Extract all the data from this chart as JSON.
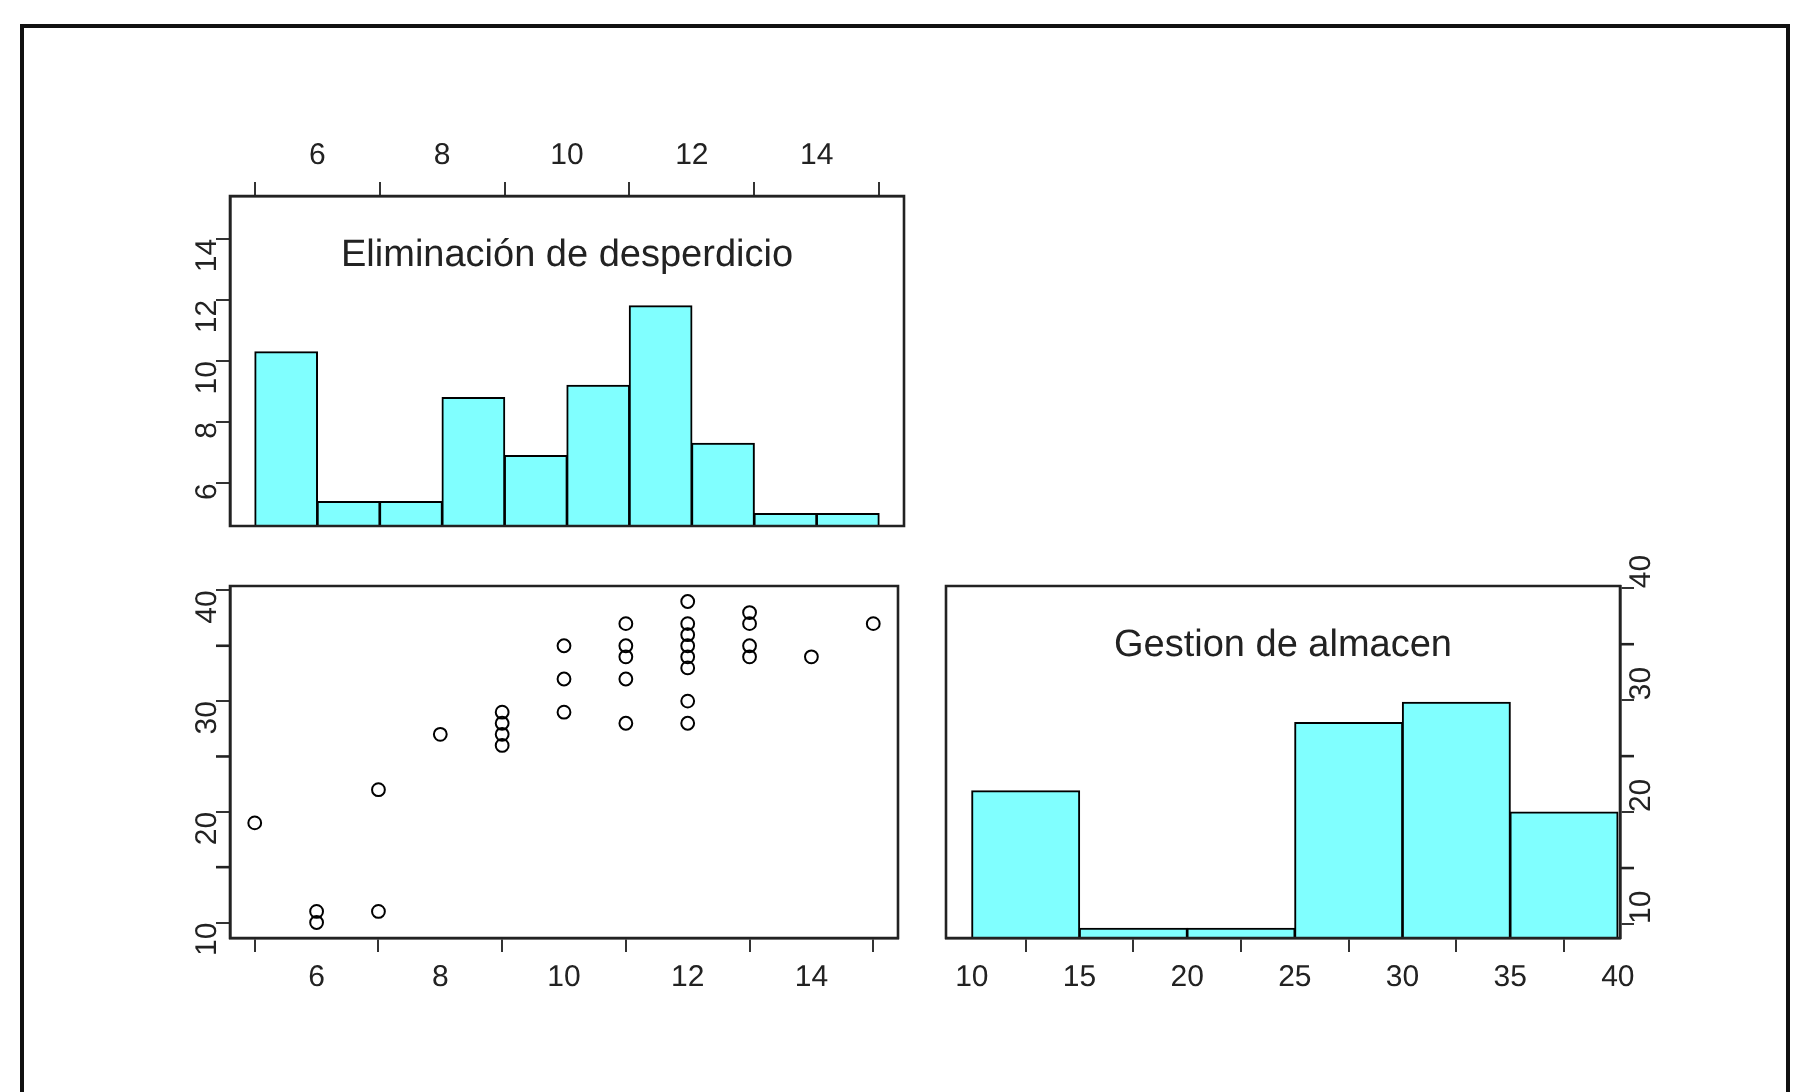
{
  "chart_data": [
    {
      "type": "histogram",
      "title": "Eliminación de desperdicio",
      "bins": [
        5,
        6,
        7,
        8,
        9,
        10,
        11,
        12,
        13,
        14,
        15
      ],
      "values": [
        10.3,
        5.4,
        5.4,
        8.8,
        6.9,
        9.2,
        11.8,
        7.3,
        5.0,
        5.0
      ],
      "color": "#80ffff",
      "xlim": [
        4.6,
        15.4
      ],
      "xticks": [
        6,
        8,
        10,
        12,
        14
      ],
      "ylim": [
        4.6,
        15.4
      ],
      "yticks": [
        6,
        8,
        10,
        12,
        14
      ],
      "grid": false,
      "legend": false
    },
    {
      "type": "scatter",
      "x": [
        5,
        6,
        6,
        7,
        7,
        8,
        9,
        9,
        9,
        9,
        10,
        10,
        10,
        11,
        11,
        11,
        11,
        11,
        12,
        12,
        12,
        12,
        12,
        12,
        12,
        12,
        13,
        13,
        13,
        13,
        14,
        15
      ],
      "values": [
        19,
        11,
        10,
        22,
        11,
        27,
        29,
        28,
        27,
        26,
        35,
        32,
        29,
        37,
        35,
        34,
        32,
        28,
        39,
        37,
        36,
        35,
        34,
        33,
        30,
        28,
        38,
        37,
        35,
        34,
        34,
        37
      ],
      "color": "#000000",
      "marker": "circle",
      "xlim": [
        4.6,
        15.4
      ],
      "xticks": [
        6,
        8,
        10,
        12,
        14
      ],
      "ylim": [
        8.6,
        40.4
      ],
      "yticks": [
        10,
        {
          "value": 15,
          "label": null
        },
        20,
        {
          "value": 25,
          "label": null
        },
        30,
        {
          "value": 35,
          "label": null
        },
        40
      ],
      "grid": false,
      "legend": false
    },
    {
      "type": "histogram",
      "title": "Gestion de almacen",
      "bins": [
        10,
        15,
        20,
        25,
        30,
        35,
        40
      ],
      "values": [
        21.9,
        9.6,
        9.6,
        28.0,
        29.8,
        20.0
      ],
      "color": "#80ffff",
      "xlim": [
        8.8,
        40.1
      ],
      "xticks": [
        10,
        15,
        20,
        25,
        30,
        35,
        40
      ],
      "ylim": [
        8.75,
        40.2
      ],
      "yticks": [
        10,
        {
          "value": 15,
          "label": null
        },
        20,
        {
          "value": 25,
          "label": null
        },
        30,
        {
          "value": 35,
          "label": null
        },
        40
      ],
      "grid": false,
      "legend": false
    }
  ]
}
